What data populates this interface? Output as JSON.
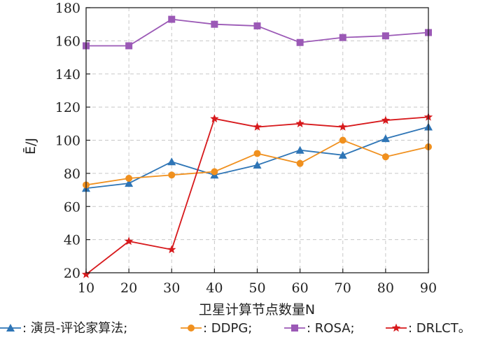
{
  "chart_data": {
    "type": "line",
    "x": [
      10,
      20,
      30,
      40,
      50,
      60,
      70,
      80,
      90
    ],
    "xlabel": "卫星计算节点数量N",
    "ylabel": "Ē/J",
    "xlim": [
      10,
      90
    ],
    "ylim": [
      20,
      180
    ],
    "xticks": [
      "10",
      "20",
      "30",
      "40",
      "50",
      "60",
      "70",
      "80",
      "90"
    ],
    "yticks": [
      "20",
      "40",
      "60",
      "80",
      "100",
      "120",
      "140",
      "160",
      "180"
    ],
    "grid": true,
    "legend_position": "bottom",
    "series": [
      {
        "name": ": 演员-评论家算法;",
        "color": "#2e75b6",
        "marker": "triangle",
        "values": [
          71,
          74,
          87,
          79,
          85,
          94,
          91,
          101,
          108
        ]
      },
      {
        "name": ": DDPG;",
        "color": "#f0901e",
        "marker": "circle",
        "values": [
          73,
          77,
          79,
          81,
          92,
          86,
          100,
          90,
          96
        ]
      },
      {
        "name": ": ROSA;",
        "color": "#9b59b6",
        "marker": "square",
        "values": [
          157,
          157,
          173,
          170,
          169,
          159,
          162,
          163,
          165
        ]
      },
      {
        "name": ": DRLCT。",
        "color": "#d7191c",
        "marker": "star",
        "values": [
          19,
          39,
          34,
          113,
          108,
          110,
          108,
          112,
          114
        ]
      }
    ]
  }
}
